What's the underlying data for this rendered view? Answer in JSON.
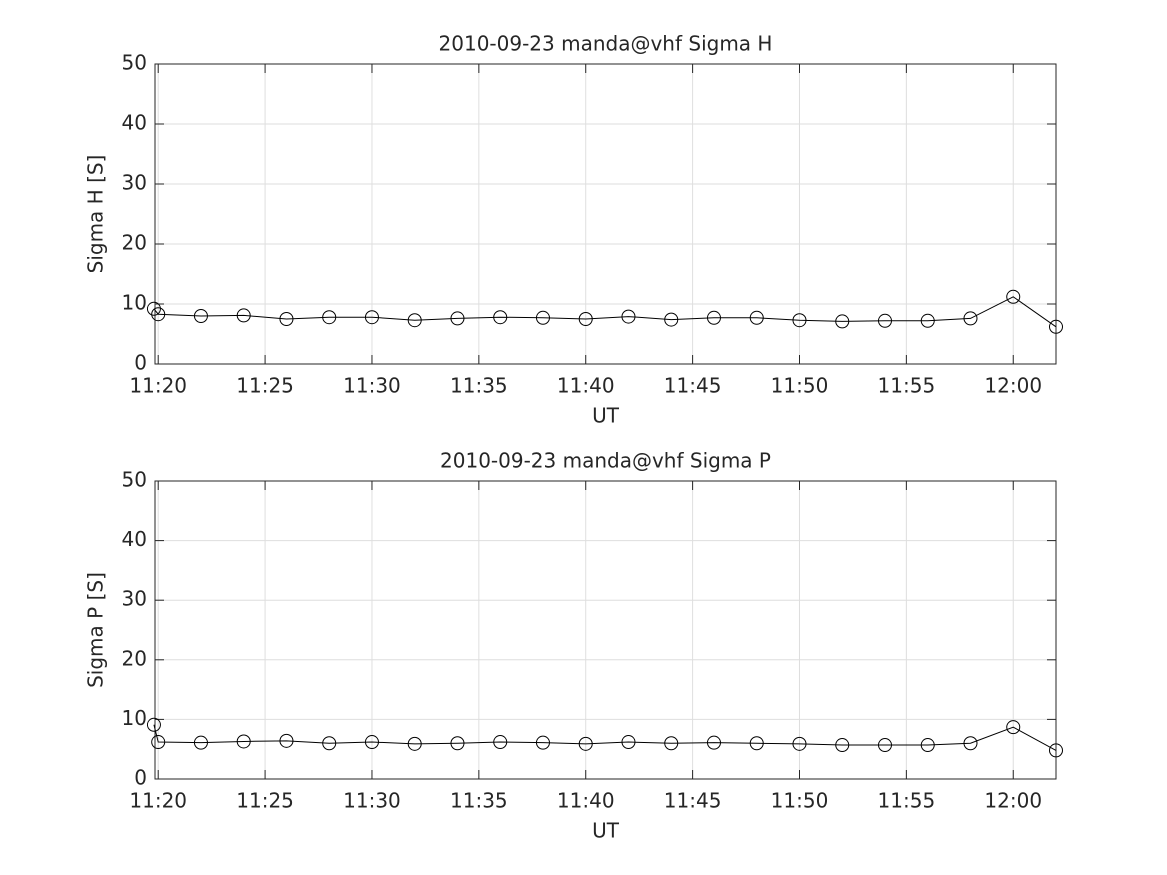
{
  "chart_data": [
    {
      "type": "line",
      "title": "2010-09-23  manda@vhf Sigma H",
      "xlabel": "UT",
      "ylabel": "Sigma H [S]",
      "x": [
        679.8,
        680,
        682,
        684,
        686,
        688,
        690,
        692,
        694,
        696,
        698,
        700,
        702,
        704,
        706,
        708,
        710,
        712,
        714,
        716,
        718,
        720,
        722
      ],
      "values": [
        9.2,
        8.3,
        8.0,
        8.1,
        7.5,
        7.8,
        7.8,
        7.3,
        7.6,
        7.8,
        7.7,
        7.5,
        7.9,
        7.4,
        7.7,
        7.7,
        7.3,
        7.1,
        7.2,
        7.2,
        7.6,
        11.2,
        6.2
      ],
      "color": "#000000",
      "marker": "circle",
      "grid": true,
      "xlim": [
        679.85,
        722
      ],
      "ylim": [
        0,
        50
      ],
      "xticks": [
        {
          "value": 680,
          "label": "11:20"
        },
        {
          "value": 685,
          "label": "11:25"
        },
        {
          "value": 690,
          "label": "11:30"
        },
        {
          "value": 695,
          "label": "11:35"
        },
        {
          "value": 700,
          "label": "11:40"
        },
        {
          "value": 705,
          "label": "11:45"
        },
        {
          "value": 710,
          "label": "11:50"
        },
        {
          "value": 715,
          "label": "11:55"
        },
        {
          "value": 720,
          "label": "12:00"
        }
      ],
      "yticks": [
        0,
        10,
        20,
        30,
        40,
        50
      ]
    },
    {
      "type": "line",
      "title": "2010-09-23  manda@vhf Sigma P",
      "xlabel": "UT",
      "ylabel": "Sigma P [S]",
      "x": [
        679.8,
        680,
        682,
        684,
        686,
        688,
        690,
        692,
        694,
        696,
        698,
        700,
        702,
        704,
        706,
        708,
        710,
        712,
        714,
        716,
        718,
        720,
        722
      ],
      "values": [
        9.1,
        6.2,
        6.1,
        6.3,
        6.4,
        6.0,
        6.2,
        5.9,
        6.0,
        6.2,
        6.1,
        5.9,
        6.2,
        6.0,
        6.1,
        6.0,
        5.9,
        5.7,
        5.7,
        5.7,
        6.0,
        8.7,
        4.8
      ],
      "color": "#000000",
      "marker": "circle",
      "grid": true,
      "xlim": [
        679.85,
        722
      ],
      "ylim": [
        0,
        50
      ],
      "xticks": [
        {
          "value": 680,
          "label": "11:20"
        },
        {
          "value": 685,
          "label": "11:25"
        },
        {
          "value": 690,
          "label": "11:30"
        },
        {
          "value": 695,
          "label": "11:35"
        },
        {
          "value": 700,
          "label": "11:40"
        },
        {
          "value": 705,
          "label": "11:45"
        },
        {
          "value": 710,
          "label": "11:50"
        },
        {
          "value": 715,
          "label": "11:55"
        },
        {
          "value": 720,
          "label": "12:00"
        }
      ],
      "yticks": [
        0,
        10,
        20,
        30,
        40,
        50
      ]
    }
  ]
}
